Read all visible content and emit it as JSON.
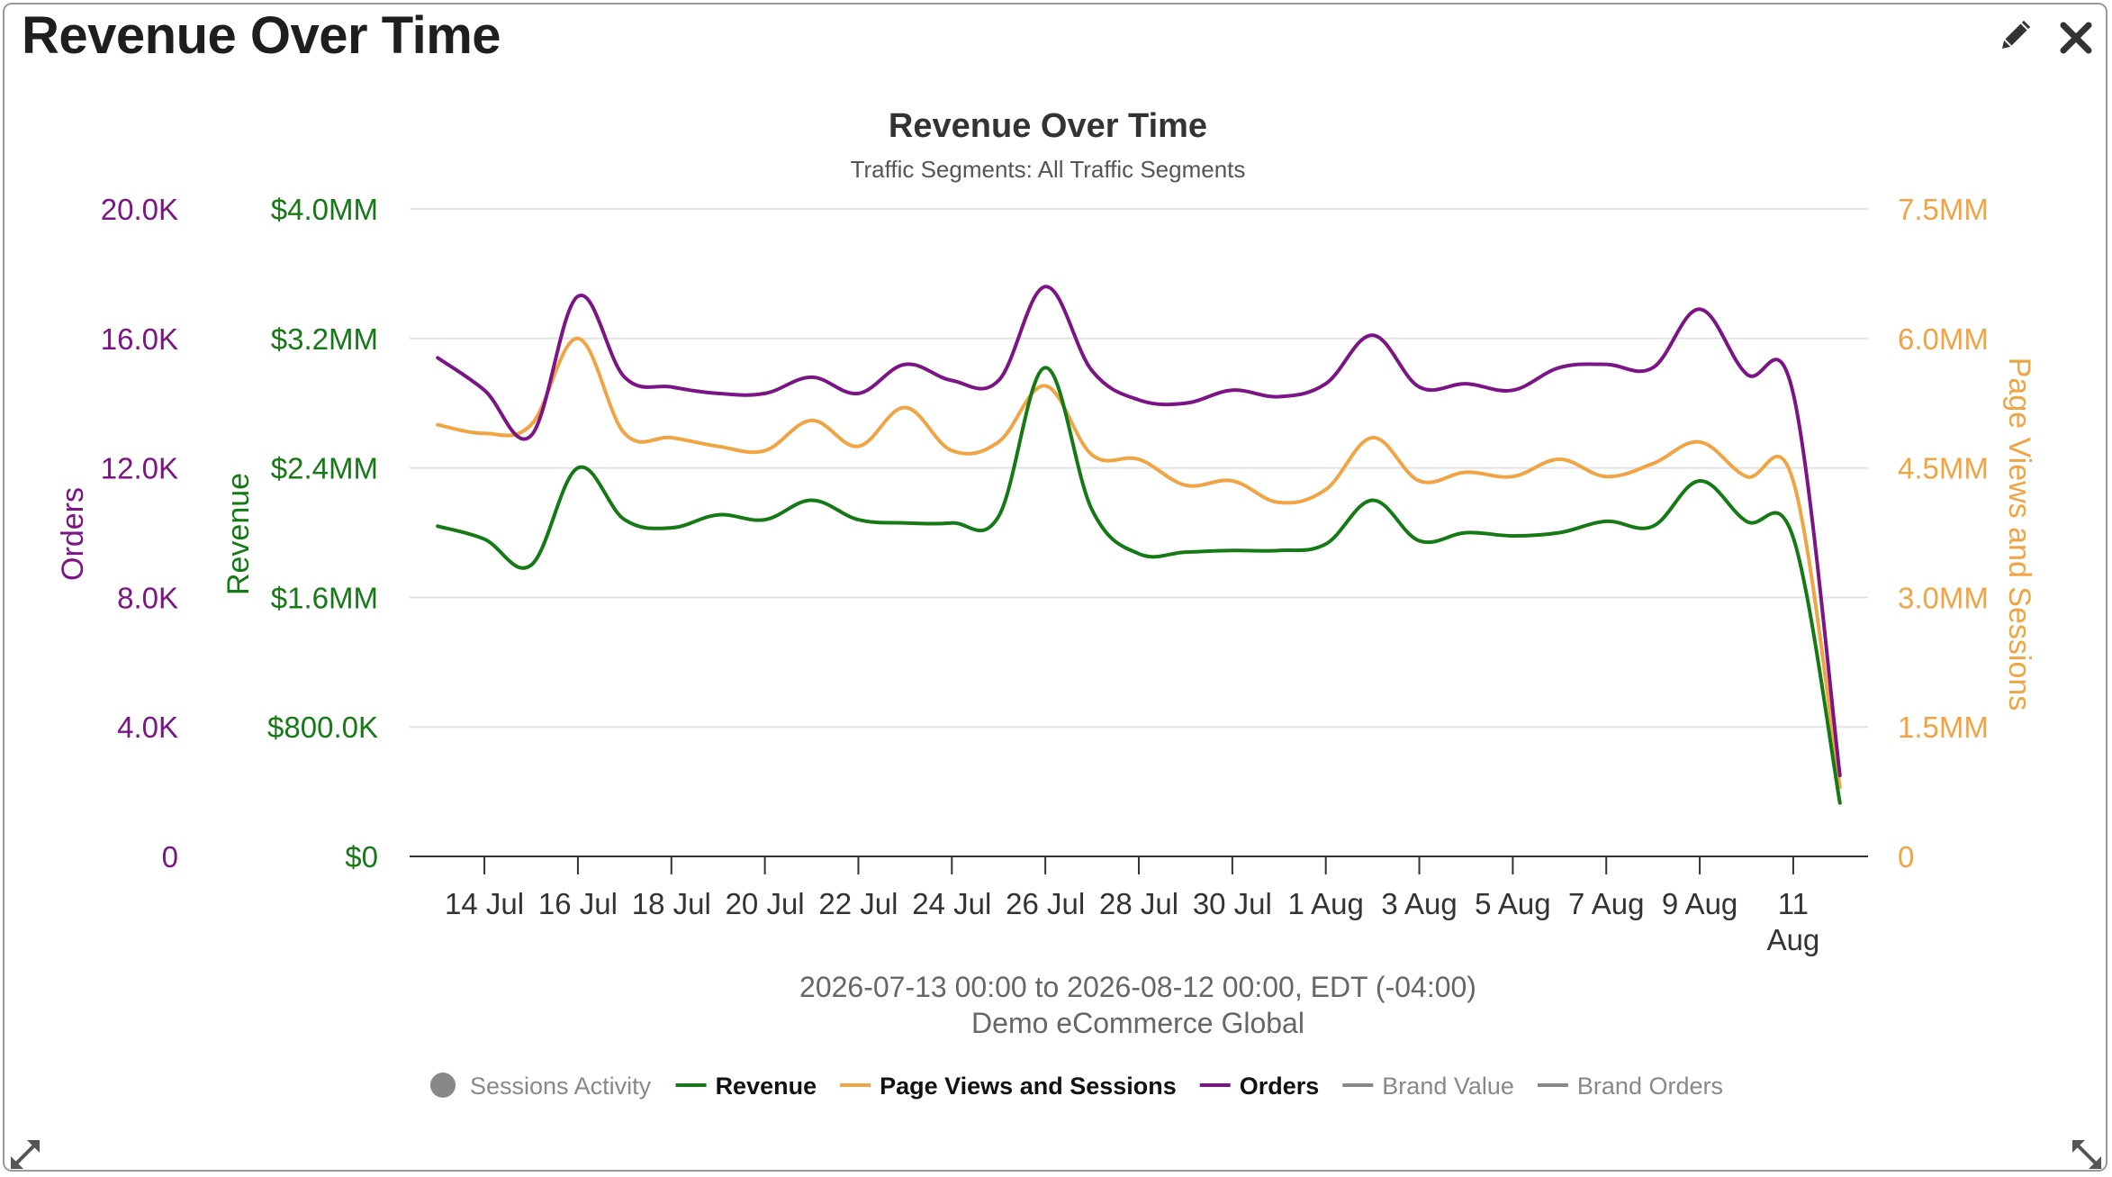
{
  "widget": {
    "title": "Revenue Over Time",
    "edit_icon": "pencil-icon",
    "close_icon": "close-icon",
    "resize_icon": "resize-diagonal-icon"
  },
  "colors": {
    "orders": "#7b1585",
    "revenue": "#157a15",
    "page_views": "#f0a443",
    "grid": "#e3e3e3",
    "axis_line": "#333333",
    "muted": "#888888"
  },
  "chart_data": {
    "type": "line",
    "title": "Revenue Over Time",
    "subtitle": "Traffic Segments: All Traffic Segments",
    "caption_line1": "2026-07-13 00:00 to 2026-08-12 00:00, EDT (-04:00)",
    "caption_line2": "Demo eCommerce Global",
    "grid": true,
    "legend_position": "bottom",
    "x_axis": {
      "ticks": [
        {
          "day": 1,
          "label": "14 Jul"
        },
        {
          "day": 3,
          "label": "16 Jul"
        },
        {
          "day": 5,
          "label": "18 Jul"
        },
        {
          "day": 7,
          "label": "20 Jul"
        },
        {
          "day": 9,
          "label": "22 Jul"
        },
        {
          "day": 11,
          "label": "24 Jul"
        },
        {
          "day": 13,
          "label": "26 Jul"
        },
        {
          "day": 15,
          "label": "28 Jul"
        },
        {
          "day": 17,
          "label": "30 Jul"
        },
        {
          "day": 19,
          "label": "1 Aug"
        },
        {
          "day": 21,
          "label": "3 Aug"
        },
        {
          "day": 23,
          "label": "5 Aug"
        },
        {
          "day": 25,
          "label": "7 Aug"
        },
        {
          "day": 27,
          "label": "9 Aug"
        },
        {
          "day": 29,
          "label": "11",
          "label2": "Aug"
        }
      ],
      "range_days": [
        -0.6,
        30.6
      ]
    },
    "y_axes": [
      {
        "id": "orders",
        "title": "Orders",
        "position": "left-outer",
        "ylim": [
          0,
          20000
        ],
        "tick_labels": [
          "0",
          "4.0K",
          "8.0K",
          "12.0K",
          "16.0K",
          "20.0K"
        ]
      },
      {
        "id": "revenue",
        "title": "Revenue",
        "position": "left-inner",
        "ylim": [
          0,
          4000000
        ],
        "tick_labels": [
          "$0",
          "$800.0K",
          "$1.6MM",
          "$2.4MM",
          "$3.2MM",
          "$4.0MM"
        ]
      },
      {
        "id": "page_views",
        "title": "Page Views and Sessions",
        "position": "right",
        "ylim": [
          0,
          7500000
        ],
        "tick_labels": [
          "0",
          "1.5MM",
          "3.0MM",
          "4.5MM",
          "6.0MM",
          "7.5MM"
        ]
      }
    ],
    "x_dates": [
      "2026-07-13",
      "2026-07-14",
      "2026-07-15",
      "2026-07-16",
      "2026-07-17",
      "2026-07-18",
      "2026-07-19",
      "2026-07-20",
      "2026-07-21",
      "2026-07-22",
      "2026-07-23",
      "2026-07-24",
      "2026-07-25",
      "2026-07-26",
      "2026-07-27",
      "2026-07-28",
      "2026-07-29",
      "2026-07-30",
      "2026-07-31",
      "2026-08-01",
      "2026-08-02",
      "2026-08-03",
      "2026-08-04",
      "2026-08-05",
      "2026-08-06",
      "2026-08-07",
      "2026-08-08",
      "2026-08-09",
      "2026-08-10",
      "2026-08-11",
      "2026-08-12"
    ],
    "series": [
      {
        "name": "Orders",
        "axis": "orders",
        "color": "#7b1585",
        "values": [
          15400,
          14400,
          13000,
          17300,
          14800,
          14500,
          14300,
          14300,
          14800,
          14300,
          15200,
          14700,
          14700,
          17600,
          15000,
          14100,
          14000,
          14400,
          14200,
          14600,
          16100,
          14500,
          14600,
          14400,
          15100,
          15200,
          15100,
          16900,
          14900,
          14300,
          2500
        ]
      },
      {
        "name": "Revenue",
        "axis": "revenue",
        "color": "#157a15",
        "values": [
          2040000,
          1960000,
          1800000,
          2400000,
          2080000,
          2030000,
          2110000,
          2080000,
          2200000,
          2080000,
          2060000,
          2060000,
          2100000,
          3020000,
          2140000,
          1870000,
          1880000,
          1890000,
          1890000,
          1930000,
          2200000,
          1950000,
          2000000,
          1980000,
          2000000,
          2070000,
          2040000,
          2320000,
          2070000,
          1970000,
          330000
        ]
      },
      {
        "name": "Page Views and Sessions",
        "axis": "page_views",
        "color": "#f0a443",
        "values": [
          5000000,
          4900000,
          5000000,
          6000000,
          4900000,
          4850000,
          4750000,
          4700000,
          5050000,
          4750000,
          5200000,
          4700000,
          4800000,
          5450000,
          4650000,
          4600000,
          4300000,
          4350000,
          4100000,
          4250000,
          4850000,
          4350000,
          4450000,
          4400000,
          4600000,
          4400000,
          4550000,
          4800000,
          4400000,
          4350000,
          800000
        ]
      }
    ],
    "legend": [
      {
        "label": "Sessions Activity",
        "symbol": "circle",
        "color": "#888888",
        "active": false
      },
      {
        "label": "Revenue",
        "symbol": "line",
        "color": "#157a15",
        "active": true
      },
      {
        "label": "Page Views and Sessions",
        "symbol": "line",
        "color": "#f0a443",
        "active": true
      },
      {
        "label": "Orders",
        "symbol": "line",
        "color": "#7b1585",
        "active": true
      },
      {
        "label": "Brand Value",
        "symbol": "line",
        "color": "#888888",
        "active": false
      },
      {
        "label": "Brand Orders",
        "symbol": "line",
        "color": "#888888",
        "active": false
      }
    ]
  }
}
